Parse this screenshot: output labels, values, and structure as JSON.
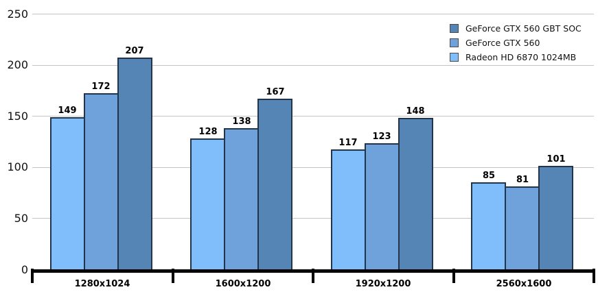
{
  "chart_data": {
    "type": "bar",
    "title": "",
    "xlabel": "",
    "ylabel": "",
    "categories": [
      "1280x1024",
      "1600x1200",
      "1920x1200",
      "2560x1600"
    ],
    "series": [
      {
        "name": "Radeon HD 6870 1024MB",
        "color": "#7FBDFB",
        "values": [
          149,
          128,
          117,
          85
        ]
      },
      {
        "name": "GeForce GTX 560",
        "color": "#6FA1DB",
        "values": [
          172,
          138,
          123,
          81
        ]
      },
      {
        "name": "GeForce GTX 560 GBT SOC",
        "color": "#5585B4",
        "values": [
          207,
          167,
          148,
          101
        ]
      }
    ],
    "legend": {
      "position": "top-right",
      "order": [
        2,
        1,
        0
      ]
    },
    "y_axis": {
      "min": 0,
      "max": 250,
      "tick_interval": 50,
      "ticks": [
        0,
        50,
        100,
        150,
        200,
        250
      ]
    },
    "grid": true,
    "colors": {
      "grid_line": "#c4c4c4",
      "axis": "#000000",
      "bar_border": "#213449",
      "text": "#000000",
      "background": "#ffffff"
    }
  }
}
